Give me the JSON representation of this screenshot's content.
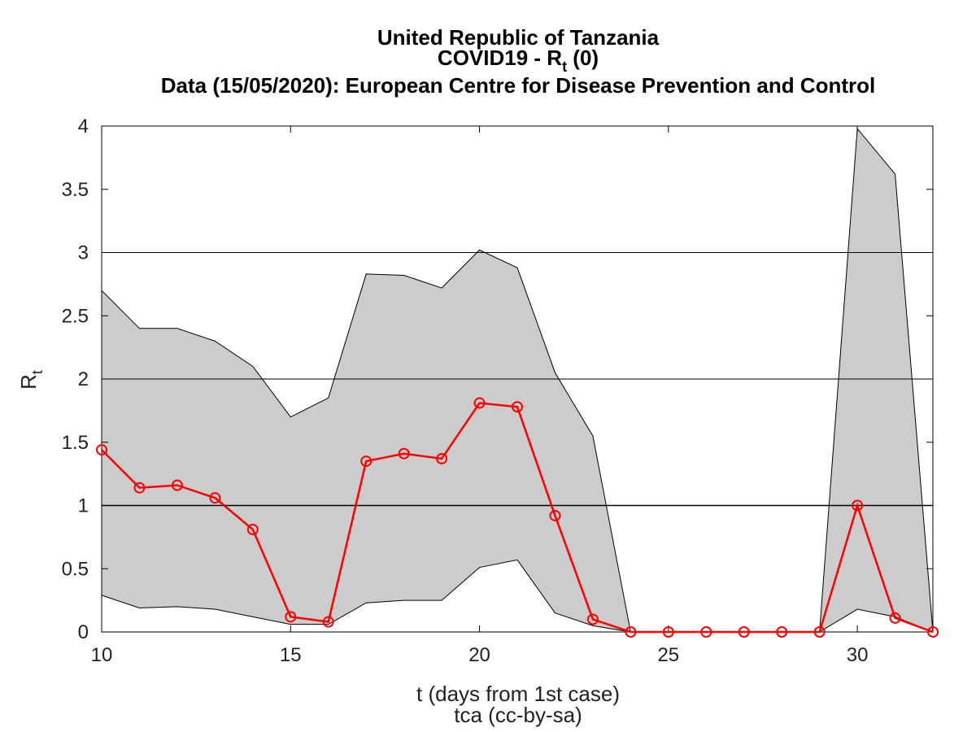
{
  "titles": {
    "line1": "United Republic of Tanzania",
    "line2_main": "COVID19 - R",
    "line2_sub": "t",
    "line2_tail": " (0)",
    "line3": "Data (15/05/2020): European Centre for Disease Prevention and Control"
  },
  "axes": {
    "xlabel": "t (days from 1st case)",
    "credit": "tca (cc-by-sa)",
    "ylabel_main": "R",
    "ylabel_sub": "t"
  },
  "colors": {
    "band_fill": "#cccccc",
    "band_edge": "#000000",
    "line": "#ff0000",
    "grid": "#000000"
  },
  "chart_data": {
    "type": "line",
    "xlim": [
      10,
      32
    ],
    "ylim": [
      0,
      4
    ],
    "xticks": [
      10,
      15,
      20,
      25,
      30
    ],
    "yticks": [
      0,
      0.5,
      1,
      1.5,
      2,
      2.5,
      3,
      3.5,
      4
    ],
    "ytick_labels": [
      "0",
      "0.5",
      "1",
      "1.5",
      "2",
      "2.5",
      "3",
      "3.5",
      "4"
    ],
    "hlines": [
      1,
      2,
      3
    ],
    "x": [
      10,
      11,
      12,
      13,
      14,
      15,
      16,
      17,
      18,
      19,
      20,
      21,
      22,
      23,
      24,
      25,
      26,
      27,
      28,
      29,
      30,
      31,
      32
    ],
    "rt": [
      1.44,
      1.14,
      1.16,
      1.06,
      0.81,
      0.12,
      0.08,
      1.35,
      1.41,
      1.37,
      1.81,
      1.78,
      0.92,
      0.1,
      0,
      0,
      0,
      0,
      0,
      0,
      1.0,
      0.11,
      0
    ],
    "upper": [
      2.7,
      2.4,
      2.4,
      2.3,
      2.1,
      1.7,
      1.85,
      2.83,
      2.82,
      2.72,
      3.02,
      2.88,
      2.05,
      1.55,
      0,
      0,
      0,
      0,
      0,
      0,
      3.98,
      3.62,
      0
    ],
    "lower": [
      0.29,
      0.19,
      0.2,
      0.18,
      0.12,
      0.06,
      0.06,
      0.23,
      0.25,
      0.25,
      0.51,
      0.57,
      0.15,
      0.05,
      0,
      0,
      0,
      0,
      0,
      0,
      0.18,
      0.12,
      0
    ]
  }
}
